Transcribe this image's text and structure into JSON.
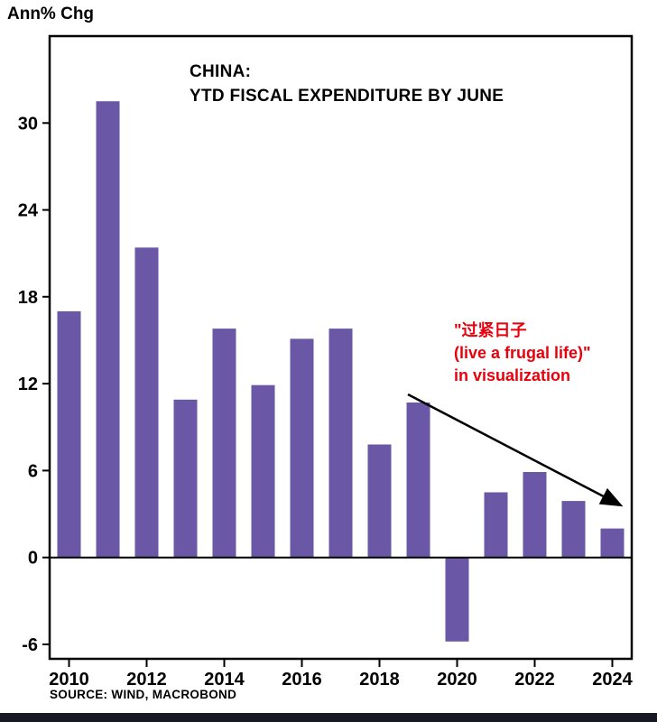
{
  "header": {
    "y_unit_label": "Ann% Chg"
  },
  "title": {
    "line1": "CHINA:",
    "line2": "YTD FISCAL EXPENDITURE BY JUNE"
  },
  "annotation": {
    "line1": "\"过紧日子",
    "line2": "(live a frugal life)\"",
    "line3": "in visualization",
    "color": "#e8000d"
  },
  "source": "SOURCE: WIND, MACROBOND",
  "colors": {
    "bar": "#6a57a5",
    "axis": "#000000"
  },
  "chart_data": {
    "type": "bar",
    "title": "CHINA: YTD FISCAL EXPENDITURE BY JUNE",
    "ylabel": "Ann% Chg",
    "xlabel": "",
    "categories": [
      2010,
      2011,
      2012,
      2013,
      2014,
      2015,
      2016,
      2017,
      2018,
      2019,
      2020,
      2021,
      2022,
      2023,
      2024
    ],
    "values": [
      17.0,
      31.5,
      21.4,
      10.9,
      15.8,
      11.9,
      15.1,
      15.8,
      7.8,
      10.7,
      -5.8,
      4.5,
      5.9,
      3.9,
      2.0
    ],
    "y_ticks": [
      30,
      24,
      18,
      12,
      6,
      0,
      -6
    ],
    "x_tick_labels": [
      "2010",
      "2012",
      "2014",
      "2016",
      "2018",
      "2020",
      "2022",
      "2024"
    ],
    "ylim": [
      -7,
      36
    ],
    "grid": false,
    "legend": "none"
  }
}
